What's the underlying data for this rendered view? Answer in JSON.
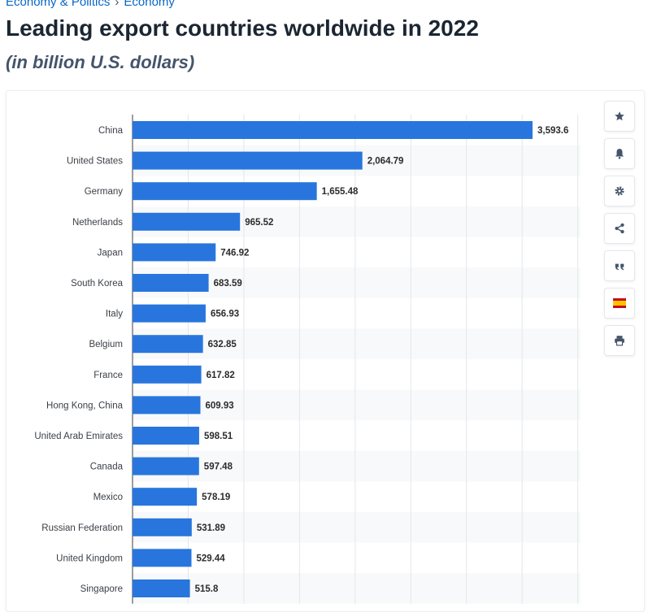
{
  "breadcrumb": {
    "items": [
      "Economy & Politics",
      "Economy"
    ],
    "separator": "›"
  },
  "title": "Leading export countries worldwide in 2022",
  "subtitle": "(in billion U.S. dollars)",
  "toolbar": {
    "buttons": [
      {
        "icon": "star-icon",
        "name": "favorite-button"
      },
      {
        "icon": "bell-icon",
        "name": "notification-button"
      },
      {
        "icon": "gear-icon",
        "name": "settings-button"
      },
      {
        "icon": "share-icon",
        "name": "share-button"
      },
      {
        "icon": "quote-icon",
        "name": "citation-button"
      },
      {
        "icon": "spain-flag-icon",
        "name": "language-button"
      },
      {
        "icon": "print-icon",
        "name": "print-button"
      }
    ]
  },
  "colors": {
    "bar": "#2876dd",
    "grid": "#e4e6ea",
    "stripe": "#f8f9fa",
    "title": "#1b2632",
    "link": "#0866c6"
  },
  "chart_data": {
    "type": "bar",
    "orientation": "horizontal",
    "categories": [
      "China",
      "United States",
      "Germany",
      "Netherlands",
      "Japan",
      "South Korea",
      "Italy",
      "Belgium",
      "France",
      "Hong Kong, China",
      "United Arab Emirates",
      "Canada",
      "Mexico",
      "Russian Federation",
      "United Kingdom",
      "Singapore"
    ],
    "values": [
      3593.6,
      2064.79,
      1655.48,
      965.52,
      746.92,
      683.59,
      656.93,
      632.85,
      617.82,
      609.93,
      598.51,
      597.48,
      578.19,
      531.89,
      529.44,
      515.8
    ],
    "value_labels": [
      "3,593.6",
      "2,064.79",
      "1,655.48",
      "965.52",
      "746.92",
      "683.59",
      "656.93",
      "632.85",
      "617.82",
      "609.93",
      "598.51",
      "597.48",
      "578.19",
      "531.89",
      "529.44",
      "515.8"
    ],
    "xlim": [
      0,
      4000
    ],
    "grid": true,
    "title": "Leading export countries worldwide in 2022",
    "xlabel": "",
    "ylabel": ""
  }
}
